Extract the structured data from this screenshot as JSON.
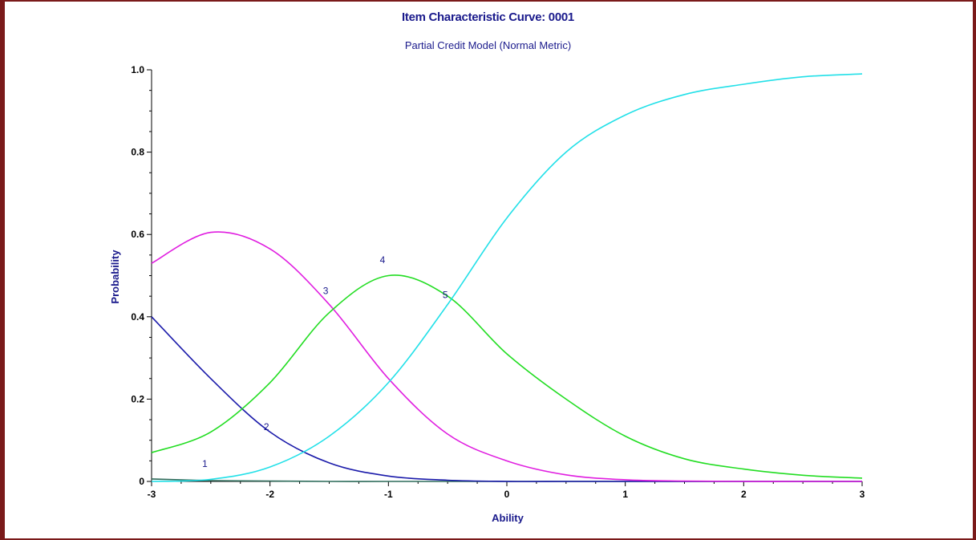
{
  "chart_data": {
    "type": "line",
    "title": "Item Characteristic Curve: 0001",
    "subtitle": "Partial Credit Model (Normal Metric)",
    "xlabel": "Ability",
    "ylabel": "Probability",
    "xlim": [
      -3,
      3
    ],
    "ylim": [
      0,
      1
    ],
    "xticks": [
      "-3",
      "-2",
      "-1",
      "0",
      "1",
      "2",
      "3"
    ],
    "yticks": [
      "0",
      "0.2",
      "0.4",
      "0.6",
      "0.8",
      "1.0"
    ],
    "grid": false,
    "x": [
      -3,
      -2.5,
      -2,
      -1.5,
      -1,
      -0.5,
      0,
      0.5,
      1,
      1.5,
      2,
      2.5,
      3
    ],
    "series": [
      {
        "name": "1",
        "color": "#2d6b5a",
        "values": [
          0.006,
          0.002,
          0.001,
          0.0,
          0.0,
          0.0,
          0.0,
          0.0,
          0.0,
          0.0,
          0.0,
          0.0,
          0.0
        ],
        "label_at": [
          -2.55,
          0.035
        ]
      },
      {
        "name": "2",
        "color": "#1a1aaa",
        "values": [
          0.4,
          0.25,
          0.12,
          0.045,
          0.013,
          0.003,
          0.0,
          0.0,
          0.0,
          0.0,
          0.0,
          0.0,
          0.0
        ],
        "label_at": [
          -2.03,
          0.125
        ]
      },
      {
        "name": "3",
        "color": "#e01ee0",
        "values": [
          0.53,
          0.605,
          0.565,
          0.43,
          0.25,
          0.115,
          0.05,
          0.016,
          0.004,
          0.001,
          0.0,
          0.0,
          0.0
        ],
        "label_at": [
          -1.53,
          0.455
        ]
      },
      {
        "name": "4",
        "color": "#22dd22",
        "values": [
          0.07,
          0.12,
          0.24,
          0.41,
          0.5,
          0.45,
          0.31,
          0.2,
          0.11,
          0.055,
          0.03,
          0.015,
          0.008
        ],
        "label_at": [
          -1.05,
          0.53
        ]
      },
      {
        "name": "5",
        "color": "#22e0e8",
        "values": [
          0.0,
          0.005,
          0.035,
          0.11,
          0.24,
          0.43,
          0.64,
          0.8,
          0.89,
          0.94,
          0.965,
          0.983,
          0.99
        ],
        "label_at": [
          -0.52,
          0.445
        ]
      }
    ]
  }
}
